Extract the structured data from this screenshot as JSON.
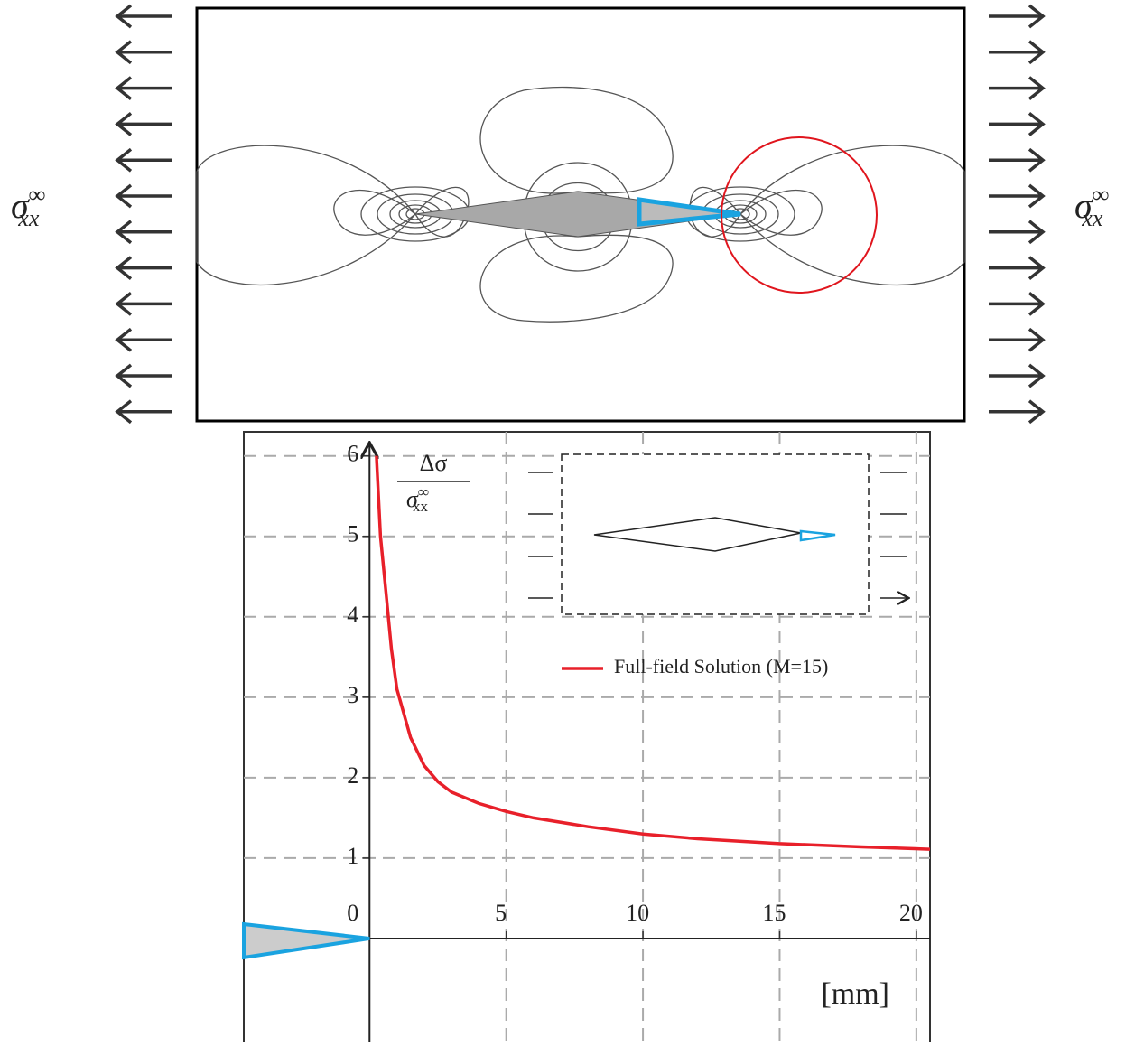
{
  "load_labels": {
    "left": {
      "symbol": "σ",
      "superscript": "∞",
      "subscript": "xx"
    },
    "right": {
      "symbol": "σ",
      "superscript": "∞",
      "subscript": "xx"
    }
  },
  "chart_data": {
    "type": "line",
    "y_label": {
      "numerator": "Δσ",
      "denominator": {
        "symbol": "σ",
        "superscript": "∞",
        "subscript": "xx"
      }
    },
    "x_label": "[mm]",
    "xlim": [
      -4.6,
      20.5
    ],
    "ylim": [
      -1.0,
      6.3
    ],
    "xticks": [
      5,
      10,
      15,
      20
    ],
    "yticks": [
      0,
      1,
      2,
      3,
      4,
      5,
      6
    ],
    "grid": true,
    "legend": "upper right",
    "x": [
      0.25,
      0.4,
      0.6,
      0.8,
      1,
      1.5,
      2,
      2.5,
      3,
      4,
      5,
      6,
      8,
      10,
      12,
      15,
      18,
      20.5
    ],
    "series": [
      {
        "name": "Full-field Solution (M=15)",
        "color": "#e8202a",
        "values": [
          6,
          5,
          4.3,
          3.6,
          3.1,
          2.5,
          2.15,
          1.95,
          1.82,
          1.68,
          1.58,
          1.5,
          1.39,
          1.3,
          1.24,
          1.18,
          1.14,
          1.11
        ]
      }
    ]
  }
}
